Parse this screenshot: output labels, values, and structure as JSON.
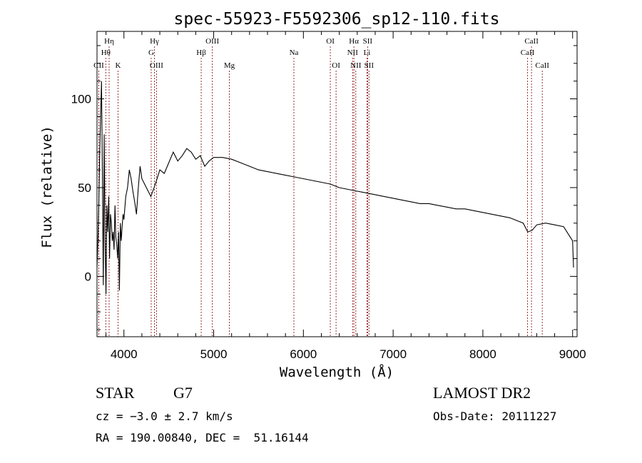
{
  "chart_data": {
    "type": "line",
    "title": "spec-55923-F5592306_sp12-110.fits",
    "xlabel": "Wavelength (Å)",
    "ylabel": "Flux (relative)",
    "xlim": [
      3700,
      9050
    ],
    "ylim": [
      -34,
      138
    ],
    "xticks": [
      4000,
      5000,
      6000,
      7000,
      8000,
      9000
    ],
    "yticks": [
      0,
      50,
      100
    ],
    "grid": false,
    "line_color": "#000000",
    "marker_color": "#8b1a1a",
    "series": [
      {
        "x": [
          3700,
          3710,
          3720,
          3730,
          3740,
          3750,
          3760,
          3770,
          3780,
          3790,
          3800,
          3810,
          3820,
          3830,
          3840,
          3850,
          3860,
          3870,
          3880,
          3890,
          3900,
          3910,
          3920,
          3930,
          3940,
          3950,
          3960,
          3970,
          3980,
          3990,
          4000,
          4020,
          4040,
          4060,
          4080,
          4100,
          4120,
          4140,
          4160,
          4180,
          4200,
          4250,
          4300,
          4350,
          4400,
          4450,
          4500,
          4550,
          4600,
          4650,
          4700,
          4750,
          4800,
          4850,
          4900,
          4950,
          5000,
          5100,
          5200,
          5300,
          5400,
          5500,
          5600,
          5700,
          5800,
          5900,
          6000,
          6100,
          6200,
          6300,
          6400,
          6500,
          6600,
          6700,
          6800,
          6900,
          7000,
          7100,
          7200,
          7300,
          7400,
          7500,
          7600,
          7700,
          7800,
          7900,
          8000,
          8100,
          8200,
          8300,
          8400,
          8450,
          8500,
          8550,
          8600,
          8700,
          8800,
          8900,
          8950,
          9000,
          9010
        ],
        "y": [
          5,
          20,
          40,
          70,
          90,
          110,
          60,
          -5,
          80,
          20,
          -10,
          40,
          25,
          45,
          10,
          35,
          30,
          20,
          25,
          15,
          40,
          22,
          18,
          10,
          25,
          -8,
          30,
          20,
          28,
          35,
          32,
          45,
          50,
          60,
          55,
          48,
          42,
          35,
          50,
          62,
          55,
          50,
          45,
          52,
          60,
          58,
          64,
          70,
          65,
          68,
          72,
          70,
          66,
          68,
          62,
          65,
          67,
          67,
          66,
          64,
          62,
          60,
          59,
          58,
          57,
          56,
          55,
          54,
          53,
          52,
          50,
          49,
          48,
          47,
          46,
          45,
          44,
          43,
          42,
          41,
          41,
          40,
          39,
          38,
          38,
          37,
          36,
          35,
          34,
          33,
          31,
          30,
          25,
          26,
          29,
          30,
          29,
          28,
          24,
          20,
          5
        ]
      }
    ],
    "line_markers": [
      {
        "label": "CII",
        "x": 3720,
        "row": 3
      },
      {
        "label": "Hθ",
        "x": 3798,
        "row": 2
      },
      {
        "label": "Hη",
        "x": 3835,
        "row": 1
      },
      {
        "label": "K",
        "x": 3934,
        "row": 3
      },
      {
        "label": "Hγ",
        "x": 4340,
        "row": 1
      },
      {
        "label": "G",
        "x": 4304,
        "row": 2
      },
      {
        "label": "OIII",
        "x": 4363,
        "row": 3
      },
      {
        "label": "Hβ",
        "x": 4861,
        "row": 2
      },
      {
        "label": "OIII",
        "x": 4985,
        "row": 1
      },
      {
        "label": "Mg",
        "x": 5175,
        "row": 3
      },
      {
        "label": "Na",
        "x": 5894,
        "row": 2
      },
      {
        "label": "OI",
        "x": 6300,
        "row": 1
      },
      {
        "label": "OI",
        "x": 6364,
        "row": 3
      },
      {
        "label": "Hα",
        "x": 6563,
        "row": 1
      },
      {
        "label": "NII",
        "x": 6548,
        "row": 2
      },
      {
        "label": "NII",
        "x": 6584,
        "row": 3
      },
      {
        "label": "SII",
        "x": 6716,
        "row": 1
      },
      {
        "label": "Li",
        "x": 6708,
        "row": 2
      },
      {
        "label": "SII",
        "x": 6731,
        "row": 3
      },
      {
        "label": "CaII",
        "x": 8542,
        "row": 1
      },
      {
        "label": "CaII",
        "x": 8498,
        "row": 2
      },
      {
        "label": "CaII",
        "x": 8662,
        "row": 3
      }
    ]
  },
  "info": {
    "object_class": "STAR",
    "subclass": "G7",
    "redshift_line": "cz = −3.0 ± 2.7 km/s",
    "coords_line": "RA = 190.00840, DEC =  51.16144",
    "survey": "LAMOST DR2",
    "obs_date": "Obs-Date: 20111227"
  }
}
